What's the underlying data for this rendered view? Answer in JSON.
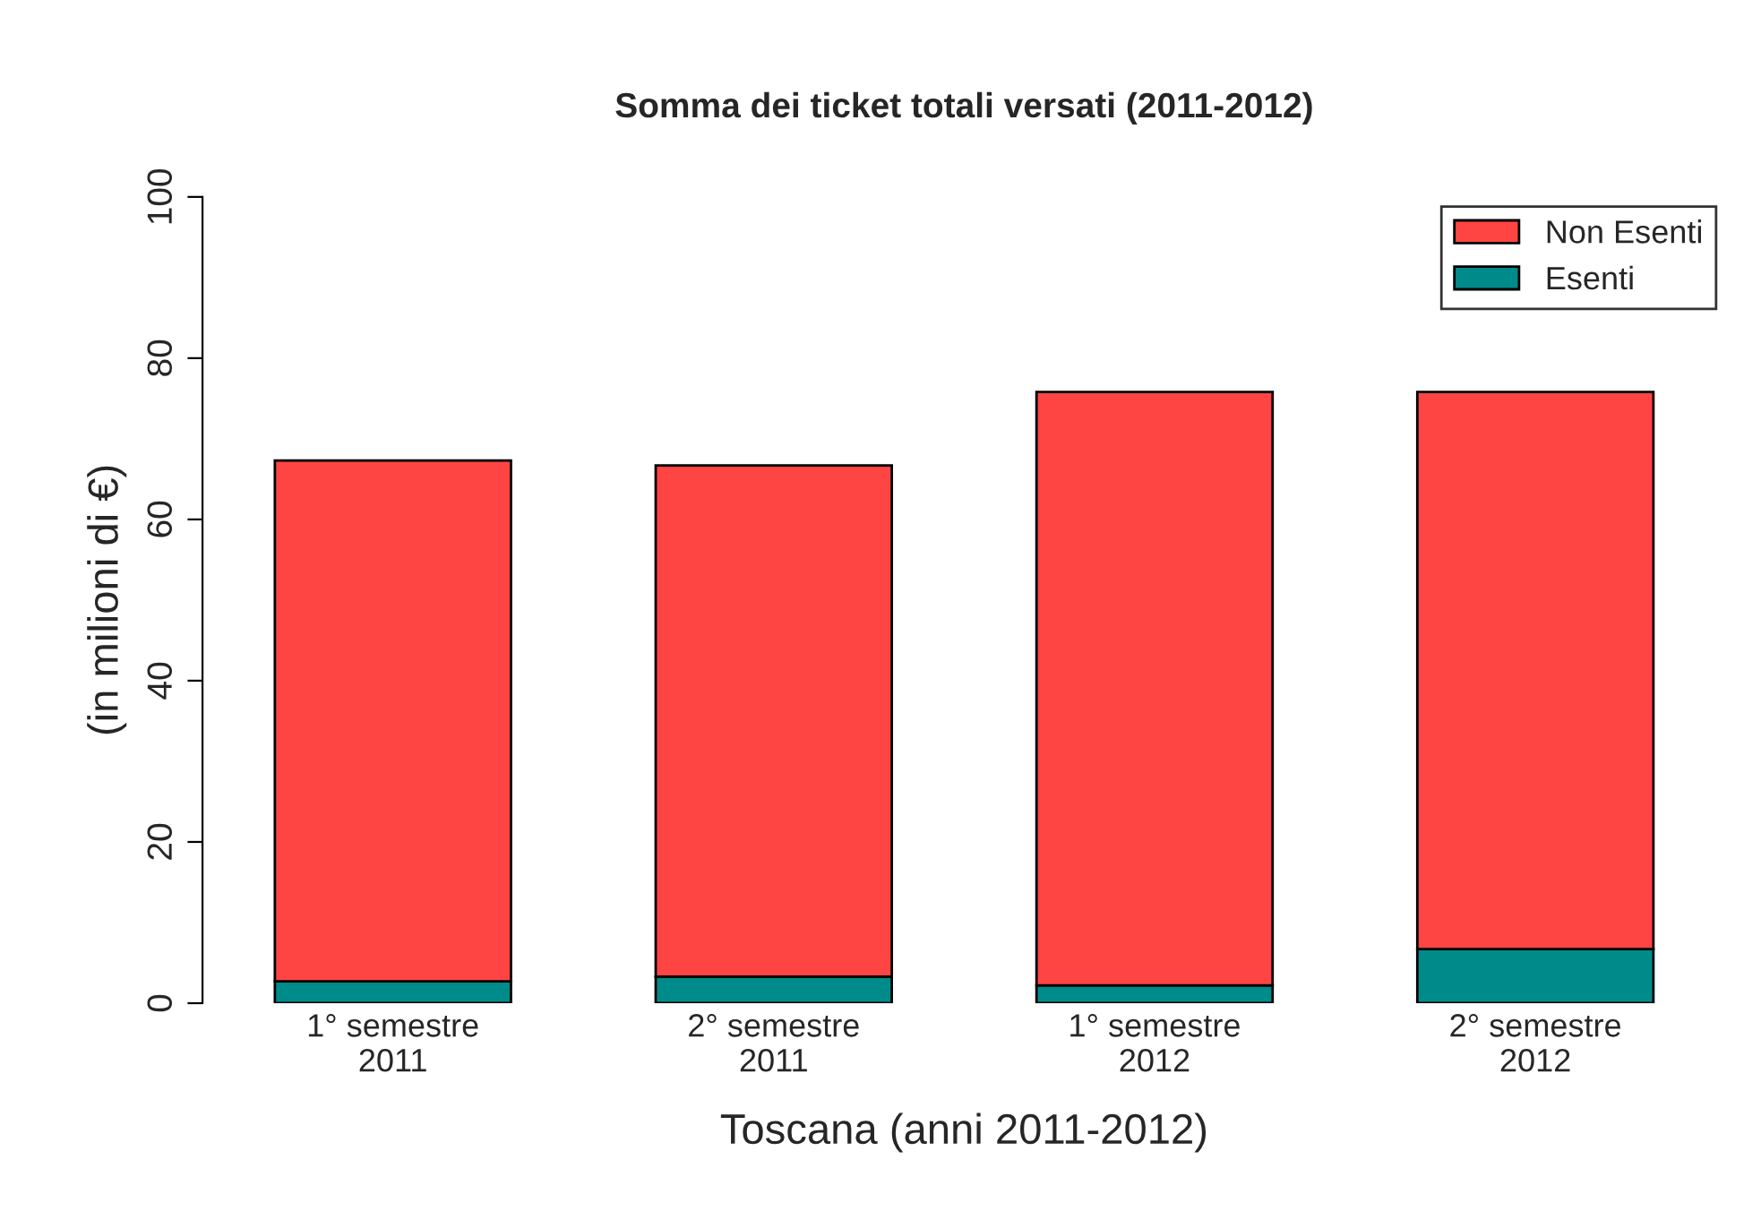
{
  "chart_data": {
    "type": "bar",
    "title": "Somma dei ticket totali versati (2011-2012)",
    "xlabel": "Toscana (anni 2011-2012)",
    "ylabel": "(in milioni di €)",
    "categories": [
      "1° semestre\n2011",
      "2° semestre\n2011",
      "1° semestre\n2012",
      "2° semestre\n2012"
    ],
    "stacked": true,
    "series": [
      {
        "name": "Esenti",
        "color": "#008b8b",
        "values": [
          2.7,
          3.3,
          2.2,
          6.7
        ]
      },
      {
        "name": "Non Esenti",
        "color": "#ff4444",
        "values": [
          64.6,
          63.4,
          73.6,
          69.1
        ]
      }
    ],
    "ylim": [
      0,
      100
    ],
    "yticks": [
      0,
      20,
      40,
      60,
      80,
      100
    ],
    "grid": false,
    "legend": "top right"
  }
}
